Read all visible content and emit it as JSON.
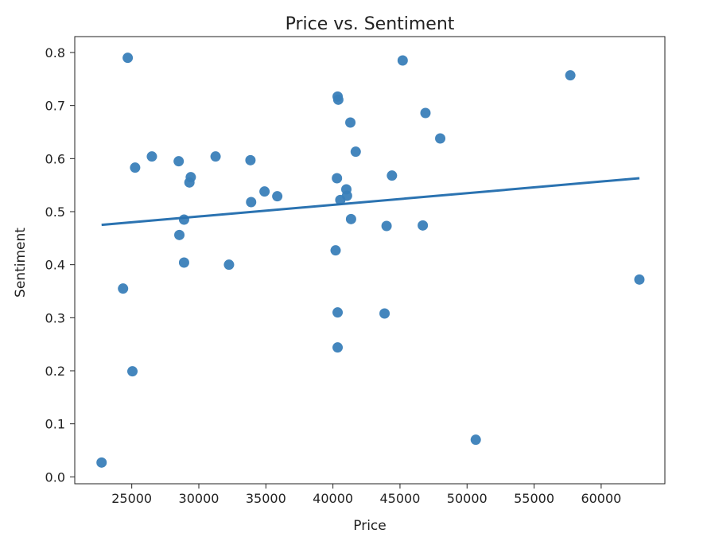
{
  "chart_data": {
    "type": "scatter",
    "title": "Price vs. Sentiment",
    "xlabel": "Price",
    "ylabel": "Sentiment",
    "xlim": [
      20750,
      64750
    ],
    "ylim": [
      -0.013,
      0.83
    ],
    "xticks": [
      25000,
      30000,
      35000,
      40000,
      45000,
      50000,
      55000,
      60000
    ],
    "yticks": [
      0.0,
      0.1,
      0.2,
      0.3,
      0.4,
      0.5,
      0.6,
      0.7,
      0.8
    ],
    "grid": false,
    "point_color": "#3a80b9",
    "line_color": "#2b73b1",
    "points": [
      {
        "x": 22750,
        "y": 0.027
      },
      {
        "x": 24350,
        "y": 0.355
      },
      {
        "x": 24700,
        "y": 0.79
      },
      {
        "x": 25050,
        "y": 0.199
      },
      {
        "x": 25250,
        "y": 0.583
      },
      {
        "x": 26500,
        "y": 0.604
      },
      {
        "x": 28500,
        "y": 0.595
      },
      {
        "x": 28550,
        "y": 0.456
      },
      {
        "x": 28900,
        "y": 0.485
      },
      {
        "x": 28900,
        "y": 0.404
      },
      {
        "x": 29300,
        "y": 0.555
      },
      {
        "x": 29400,
        "y": 0.565
      },
      {
        "x": 31250,
        "y": 0.604
      },
      {
        "x": 32250,
        "y": 0.4
      },
      {
        "x": 33850,
        "y": 0.597
      },
      {
        "x": 33900,
        "y": 0.518
      },
      {
        "x": 34900,
        "y": 0.538
      },
      {
        "x": 35850,
        "y": 0.529
      },
      {
        "x": 40200,
        "y": 0.427
      },
      {
        "x": 40300,
        "y": 0.563
      },
      {
        "x": 40350,
        "y": 0.31
      },
      {
        "x": 40350,
        "y": 0.244
      },
      {
        "x": 40350,
        "y": 0.717
      },
      {
        "x": 40400,
        "y": 0.711
      },
      {
        "x": 40550,
        "y": 0.522
      },
      {
        "x": 41000,
        "y": 0.542
      },
      {
        "x": 41050,
        "y": 0.53
      },
      {
        "x": 41300,
        "y": 0.668
      },
      {
        "x": 41350,
        "y": 0.486
      },
      {
        "x": 41700,
        "y": 0.613
      },
      {
        "x": 43850,
        "y": 0.308
      },
      {
        "x": 44000,
        "y": 0.473
      },
      {
        "x": 44400,
        "y": 0.568
      },
      {
        "x": 45200,
        "y": 0.785
      },
      {
        "x": 46700,
        "y": 0.474
      },
      {
        "x": 46900,
        "y": 0.686
      },
      {
        "x": 48000,
        "y": 0.638
      },
      {
        "x": 50650,
        "y": 0.07
      },
      {
        "x": 57700,
        "y": 0.757
      },
      {
        "x": 62850,
        "y": 0.372
      }
    ],
    "trendline": {
      "x": [
        22750,
        62850
      ],
      "y": [
        0.475,
        0.563
      ]
    }
  }
}
